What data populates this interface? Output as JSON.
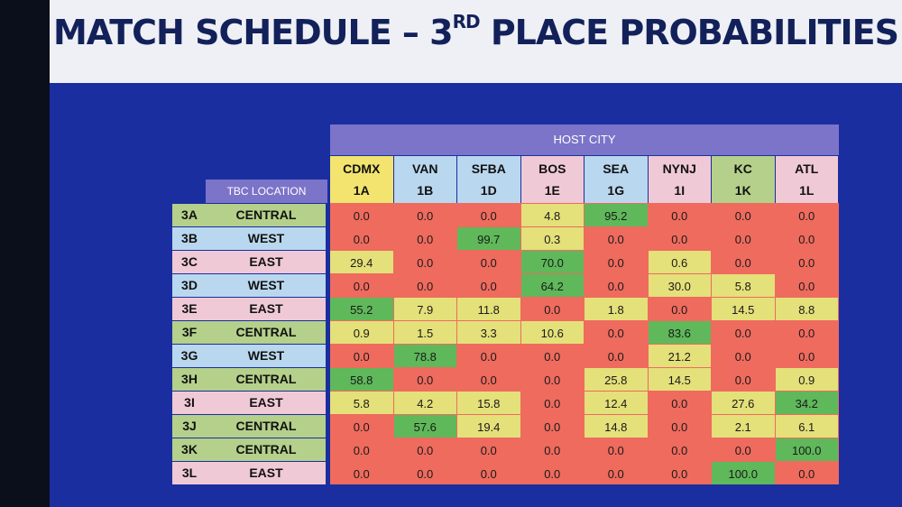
{
  "title": {
    "main_pre": "MATCH SCHEDULE – 3",
    "sup": "RD",
    "main_post": " PLACE PROBABILITIES"
  },
  "host_city_label": "HOST CITY",
  "tbc_location_label": "TBC LOCATION",
  "columns": [
    {
      "city": "CDMX",
      "code": "1A",
      "color": "#f2e46e"
    },
    {
      "city": "VAN",
      "code": "1B",
      "color": "#b9d7ee"
    },
    {
      "city": "SFBA",
      "code": "1D",
      "color": "#b9d7ee"
    },
    {
      "city": "BOS",
      "code": "1E",
      "color": "#f0c9d6"
    },
    {
      "city": "SEA",
      "code": "1G",
      "color": "#b9d7ee"
    },
    {
      "city": "NYNJ",
      "code": "1I",
      "color": "#f0c9d6"
    },
    {
      "city": "KC",
      "code": "1K",
      "color": "#b4d08a"
    },
    {
      "city": "ATL",
      "code": "1L",
      "color": "#f0c9d6"
    }
  ],
  "colors": {
    "central": "#b4d08a",
    "west": "#b9d7ee",
    "east": "#f0c9d6",
    "red": "#ee6b5e",
    "yellow": "#e4e07a",
    "green": "#5fb85a"
  },
  "rows": [
    {
      "group": "3A",
      "location": "CENTRAL",
      "region": "central",
      "values": [
        "0.0",
        "0.0",
        "0.0",
        "4.8",
        "95.2",
        "0.0",
        "0.0",
        "0.0"
      ],
      "shades": [
        "r",
        "r",
        "r",
        "y",
        "g",
        "r",
        "r",
        "r"
      ]
    },
    {
      "group": "3B",
      "location": "WEST",
      "region": "west",
      "values": [
        "0.0",
        "0.0",
        "99.7",
        "0.3",
        "0.0",
        "0.0",
        "0.0",
        "0.0"
      ],
      "shades": [
        "r",
        "r",
        "g",
        "y",
        "r",
        "r",
        "r",
        "r"
      ]
    },
    {
      "group": "3C",
      "location": "EAST",
      "region": "east",
      "values": [
        "29.4",
        "0.0",
        "0.0",
        "70.0",
        "0.0",
        "0.6",
        "0.0",
        "0.0"
      ],
      "shades": [
        "y",
        "r",
        "r",
        "g",
        "r",
        "y",
        "r",
        "r"
      ]
    },
    {
      "group": "3D",
      "location": "WEST",
      "region": "west",
      "values": [
        "0.0",
        "0.0",
        "0.0",
        "64.2",
        "0.0",
        "30.0",
        "5.8",
        "0.0"
      ],
      "shades": [
        "r",
        "r",
        "r",
        "g",
        "r",
        "y",
        "y",
        "r"
      ]
    },
    {
      "group": "3E",
      "location": "EAST",
      "region": "east",
      "values": [
        "55.2",
        "7.9",
        "11.8",
        "0.0",
        "1.8",
        "0.0",
        "14.5",
        "8.8"
      ],
      "shades": [
        "g",
        "y",
        "y",
        "r",
        "y",
        "r",
        "y",
        "y"
      ]
    },
    {
      "group": "3F",
      "location": "CENTRAL",
      "region": "central",
      "values": [
        "0.9",
        "1.5",
        "3.3",
        "10.6",
        "0.0",
        "83.6",
        "0.0",
        "0.0"
      ],
      "shades": [
        "y",
        "y",
        "y",
        "y",
        "r",
        "g",
        "r",
        "r"
      ]
    },
    {
      "group": "3G",
      "location": "WEST",
      "region": "west",
      "values": [
        "0.0",
        "78.8",
        "0.0",
        "0.0",
        "0.0",
        "21.2",
        "0.0",
        "0.0"
      ],
      "shades": [
        "r",
        "g",
        "r",
        "r",
        "r",
        "y",
        "r",
        "r"
      ]
    },
    {
      "group": "3H",
      "location": "CENTRAL",
      "region": "central",
      "values": [
        "58.8",
        "0.0",
        "0.0",
        "0.0",
        "25.8",
        "14.5",
        "0.0",
        "0.9"
      ],
      "shades": [
        "g",
        "r",
        "r",
        "r",
        "y",
        "y",
        "r",
        "y"
      ]
    },
    {
      "group": "3I",
      "location": "EAST",
      "region": "east",
      "values": [
        "5.8",
        "4.2",
        "15.8",
        "0.0",
        "12.4",
        "0.0",
        "27.6",
        "34.2"
      ],
      "shades": [
        "y",
        "y",
        "y",
        "r",
        "y",
        "r",
        "y",
        "g"
      ]
    },
    {
      "group": "3J",
      "location": "CENTRAL",
      "region": "central",
      "values": [
        "0.0",
        "57.6",
        "19.4",
        "0.0",
        "14.8",
        "0.0",
        "2.1",
        "6.1"
      ],
      "shades": [
        "r",
        "g",
        "y",
        "r",
        "y",
        "r",
        "y",
        "y"
      ]
    },
    {
      "group": "3K",
      "location": "CENTRAL",
      "region": "central",
      "values": [
        "0.0",
        "0.0",
        "0.0",
        "0.0",
        "0.0",
        "0.0",
        "0.0",
        "100.0"
      ],
      "shades": [
        "r",
        "r",
        "r",
        "r",
        "r",
        "r",
        "r",
        "g"
      ]
    },
    {
      "group": "3L",
      "location": "EAST",
      "region": "east",
      "values": [
        "0.0",
        "0.0",
        "0.0",
        "0.0",
        "0.0",
        "0.0",
        "100.0",
        "0.0"
      ],
      "shades": [
        "r",
        "r",
        "r",
        "r",
        "r",
        "r",
        "g",
        "r"
      ]
    }
  ]
}
